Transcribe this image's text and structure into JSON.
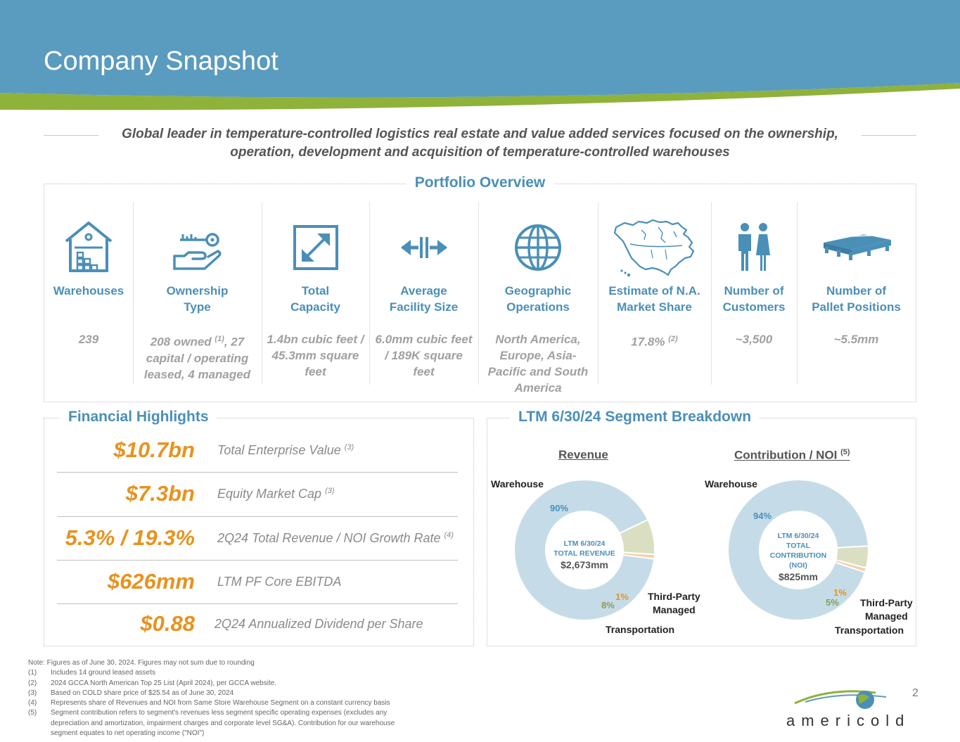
{
  "header": {
    "title": "Company Snapshot",
    "colors": {
      "banner": "#5a9bc0",
      "stripe": "#8fb23a"
    }
  },
  "tagline": "Global leader in temperature-controlled logistics real estate and value added services focused on the ownership, operation, development and acquisition of temperature-controlled warehouses",
  "portfolio": {
    "title": "Portfolio Overview",
    "items": [
      {
        "icon": "warehouse-icon",
        "label": "Warehouses",
        "value": "239"
      },
      {
        "icon": "hand-key-icon",
        "label": "Ownership Type",
        "value_parts": [
          "208 owned ",
          "(1)",
          ", 27 capital / operating leased, 4 managed"
        ]
      },
      {
        "icon": "resize-arrow-icon",
        "label": "Total Capacity",
        "value": "1.4bn cubic feet / 45.3mm square feet"
      },
      {
        "icon": "expand-arrows-icon",
        "label": "Average Facility Size",
        "value": "6.0mm cubic feet / 189K square feet"
      },
      {
        "icon": "globe-icon",
        "label": "Geographic Operations",
        "value": "North America, Europe, Asia-Pacific and South America"
      },
      {
        "icon": "north-america-map-icon",
        "label": "Estimate of N.A. Market Share",
        "value_parts": [
          "17.8% ",
          "(2)"
        ]
      },
      {
        "icon": "people-icon",
        "label": "Number of Customers",
        "value": "~3,500"
      },
      {
        "icon": "pallet-icon",
        "label": "Number of Pallet Positions",
        "value": "~5.5mm"
      }
    ]
  },
  "financial": {
    "title": "Financial Highlights",
    "rows": [
      {
        "value": "$10.7bn",
        "desc": "Total Enterprise Value ",
        "sup": "(3)"
      },
      {
        "value": "$7.3bn",
        "desc": "Equity Market Cap ",
        "sup": "(3)"
      },
      {
        "value": "5.3% / 19.3%",
        "desc": "2Q24 Total Revenue / NOI Growth Rate ",
        "sup": "(4)"
      },
      {
        "value": "$626mm",
        "desc": "LTM PF Core EBITDA",
        "sup": ""
      },
      {
        "value": "$0.88",
        "desc": "2Q24 Annualized Dividend per Share",
        "sup": ""
      }
    ]
  },
  "segment": {
    "title": "LTM 6/30/24 Segment Breakdown",
    "revenue": {
      "title": "Revenue",
      "center_line1": "LTM 6/30/24",
      "center_line2": "TOTAL REVENUE",
      "center_amount": "$2,673mm",
      "labels": {
        "warehouse": "Warehouse",
        "third_party_1": "Third-Party",
        "third_party_2": "Managed",
        "transportation": "Transportation"
      },
      "pct": {
        "warehouse": "90%",
        "transportation": "8%",
        "third_party": "1%"
      }
    },
    "noi": {
      "title": "Contribution / NOI ",
      "title_sup": "(5)",
      "center_line1": "LTM 6/30/24",
      "center_line2": "TOTAL",
      "center_line3": "CONTRIBUTION",
      "center_line4": "(NOI)",
      "center_amount": "$825mm",
      "labels": {
        "warehouse": "Warehouse",
        "third_party_1": "Third-Party",
        "third_party_2": "Managed",
        "transportation": "Transportation"
      },
      "pct": {
        "warehouse": "94%",
        "transportation": "5%",
        "third_party": "1%"
      }
    },
    "chart_data": [
      {
        "type": "pie",
        "title": "Revenue",
        "categories": [
          "Warehouse",
          "Transportation",
          "Third-Party Managed"
        ],
        "values": [
          90,
          8,
          1
        ],
        "colors": [
          "#c5dce8",
          "#d9dfc0",
          "#f5d0a8"
        ]
      },
      {
        "type": "pie",
        "title": "Contribution / NOI",
        "categories": [
          "Warehouse",
          "Transportation",
          "Third-Party Managed"
        ],
        "values": [
          94,
          5,
          1
        ],
        "colors": [
          "#c5dce8",
          "#d9dfc0",
          "#f5d0a8"
        ]
      }
    ]
  },
  "notes": {
    "intro": "Note: Figures as of June 30, 2024. Figures may not sum due to rounding",
    "items": [
      {
        "num": "(1)",
        "text": "Includes 14 ground leased assets"
      },
      {
        "num": "(2)",
        "text": "2024 GCCA North American Top 25 List (April 2024), per GCCA website."
      },
      {
        "num": "(3)",
        "text": "Based on COLD share price of $25.54 as of June 30, 2024"
      },
      {
        "num": "(4)",
        "text": "Represents share of Revenues and NOI from Same Store Warehouse Segment on a constant currency basis"
      },
      {
        "num": "(5)",
        "text": "Segment contribution refers to segment's revenues less segment specific operating expenses (excludes any depreciation and amortization, impairment charges and corporate level SG&A). Contribution for our warehouse segment equates to net operating income (\"NOI\")"
      }
    ]
  },
  "page_number": "2",
  "logo_text": "americold"
}
